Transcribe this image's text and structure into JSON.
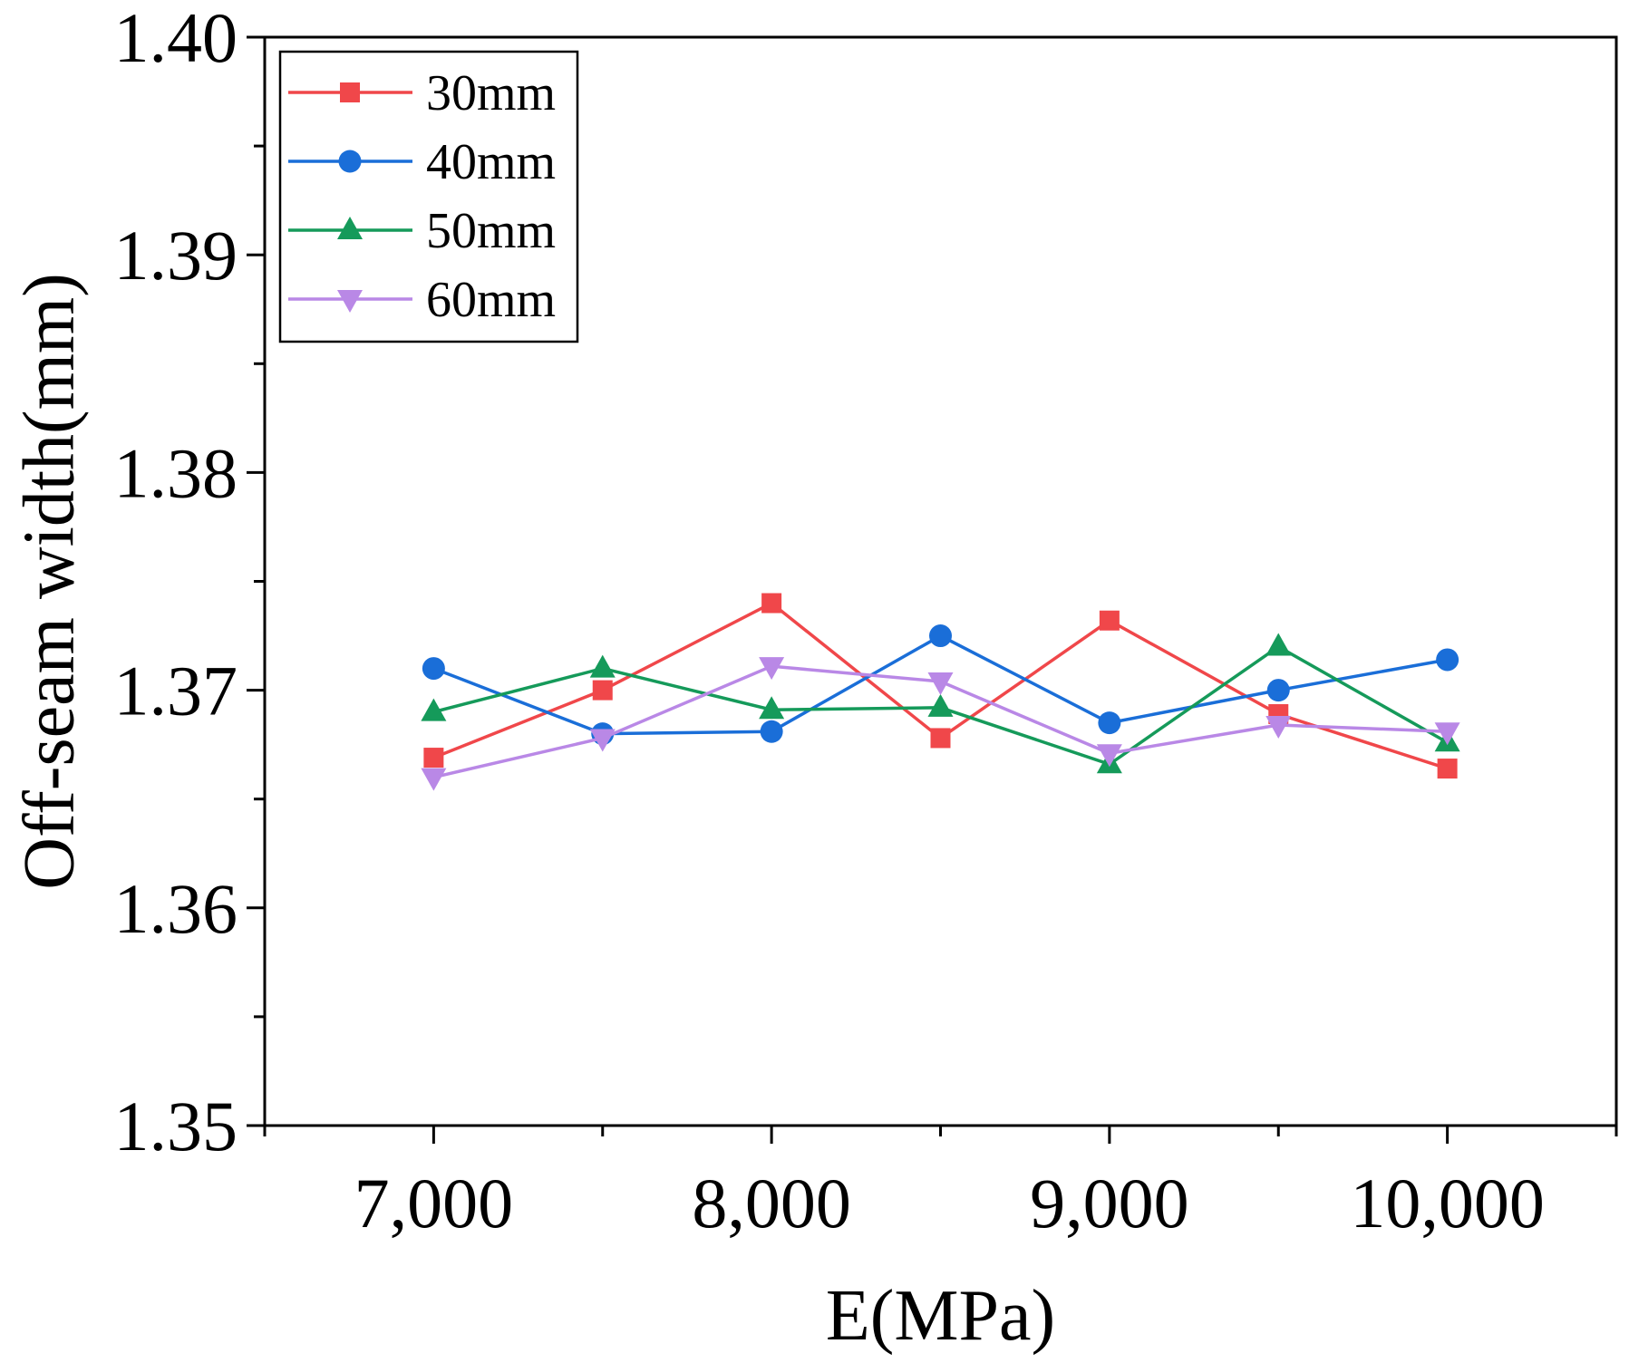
{
  "chart_data": {
    "type": "line",
    "title": "",
    "xlabel": "E(MPa)",
    "ylabel": "Off-seam width(mm)",
    "x": [
      7000,
      7500,
      8000,
      8500,
      9000,
      9500,
      10000
    ],
    "xlim": [
      6500,
      10500
    ],
    "ylim": [
      1.35,
      1.4
    ],
    "x_ticks": [
      7000,
      8000,
      9000,
      10000
    ],
    "x_tick_labels": [
      "7,000",
      "8,000",
      "9,000",
      "10,000"
    ],
    "y_ticks": [
      1.35,
      1.36,
      1.37,
      1.38,
      1.39,
      1.4
    ],
    "y_tick_labels": [
      "1.35",
      "1.36",
      "1.37",
      "1.38",
      "1.39",
      "1.40"
    ],
    "grid": false,
    "legend_position": "top-left",
    "series": [
      {
        "name": "30mm",
        "color": "#f0474a",
        "marker": "square",
        "values": [
          1.3669,
          1.37,
          1.374,
          1.3678,
          1.3732,
          1.3689,
          1.3664
        ]
      },
      {
        "name": "40mm",
        "color": "#1a6ed8",
        "marker": "circle",
        "values": [
          1.371,
          1.368,
          1.3681,
          1.3725,
          1.3685,
          1.37,
          1.3714
        ]
      },
      {
        "name": "50mm",
        "color": "#159a5a",
        "marker": "triangle-up",
        "values": [
          1.369,
          1.371,
          1.3691,
          1.3692,
          1.3666,
          1.372,
          1.3676
        ]
      },
      {
        "name": "60mm",
        "color": "#b988e6",
        "marker": "triangle-down",
        "values": [
          1.366,
          1.3678,
          1.3711,
          1.3704,
          1.3671,
          1.3684,
          1.3681
        ]
      }
    ]
  }
}
